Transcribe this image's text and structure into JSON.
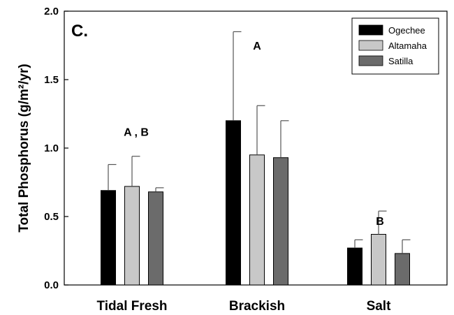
{
  "chart_data": {
    "type": "bar",
    "panel_label": "C.",
    "ylabel": "Total Phosphorus (g/m²/yr)",
    "ylim": [
      0,
      2.0
    ],
    "yticks": [
      "0.0",
      "0.5",
      "1.0",
      "1.5",
      "2.0"
    ],
    "ytick_values": [
      0,
      0.5,
      1.0,
      1.5,
      2.0
    ],
    "categories": [
      "Tidal Fresh",
      "Brackish",
      "Salt"
    ],
    "series": [
      {
        "name": "Ogechee",
        "color": "#000000",
        "values": [
          0.69,
          1.2,
          0.27
        ],
        "errors": [
          0.19,
          0.65,
          0.06
        ]
      },
      {
        "name": "Altamaha",
        "color": "#c8c8c8",
        "values": [
          0.72,
          0.95,
          0.37
        ],
        "errors": [
          0.22,
          0.36,
          0.17
        ]
      },
      {
        "name": "Satilla",
        "color": "#6b6b6b",
        "values": [
          0.68,
          0.93,
          0.23
        ],
        "errors": [
          0.03,
          0.27,
          0.1
        ]
      }
    ],
    "group_letters": [
      "A , B",
      "A",
      "B"
    ],
    "legend_position": "top-right",
    "grid": false
  }
}
